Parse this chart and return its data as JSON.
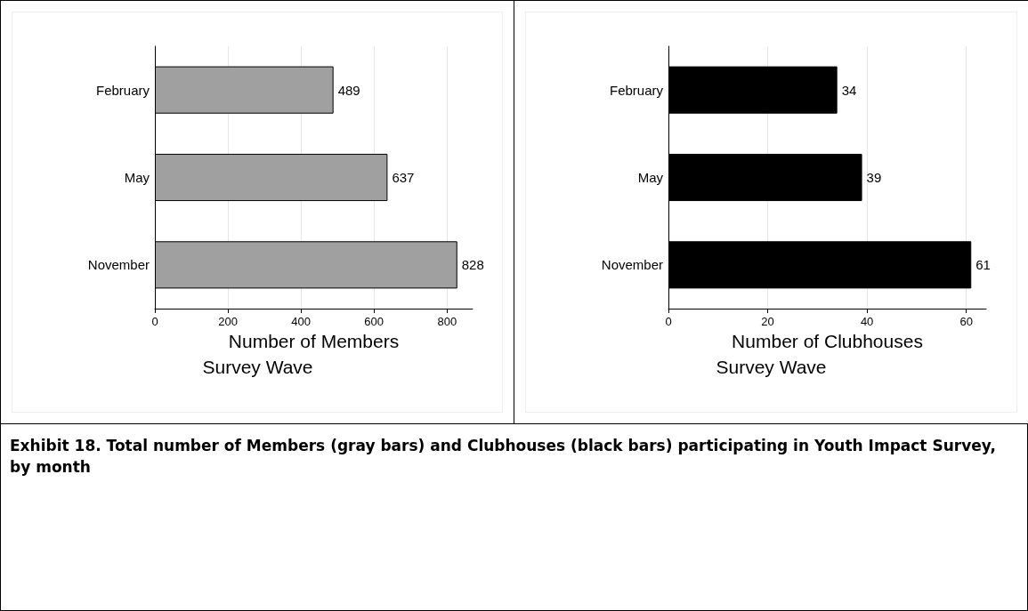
{
  "chart_data": [
    {
      "type": "bar",
      "orientation": "horizontal",
      "categories": [
        "February",
        "May",
        "November"
      ],
      "values": [
        489,
        637,
        828
      ],
      "color": "#a0a0a0",
      "xlim": [
        0,
        870
      ],
      "xticks": [
        0,
        200,
        400,
        600,
        800
      ],
      "xlabel": "Number of Members",
      "annotations": [
        "Survey Wave"
      ],
      "data_labels": true,
      "grid": "x"
    },
    {
      "type": "bar",
      "orientation": "horizontal",
      "categories": [
        "February",
        "May",
        "November"
      ],
      "values": [
        34,
        39,
        61
      ],
      "color": "#000000",
      "xlim": [
        0,
        64
      ],
      "xticks": [
        0,
        20,
        40,
        60
      ],
      "xlabel": "Number of Clubhouses",
      "annotations": [
        "Survey Wave"
      ],
      "data_labels": true,
      "grid": "x",
      "title": "Exhibit 18. Total number of Members (gray bars) and Clubhouses (black bars) participating in Youth Impact Survey, by month"
    }
  ]
}
